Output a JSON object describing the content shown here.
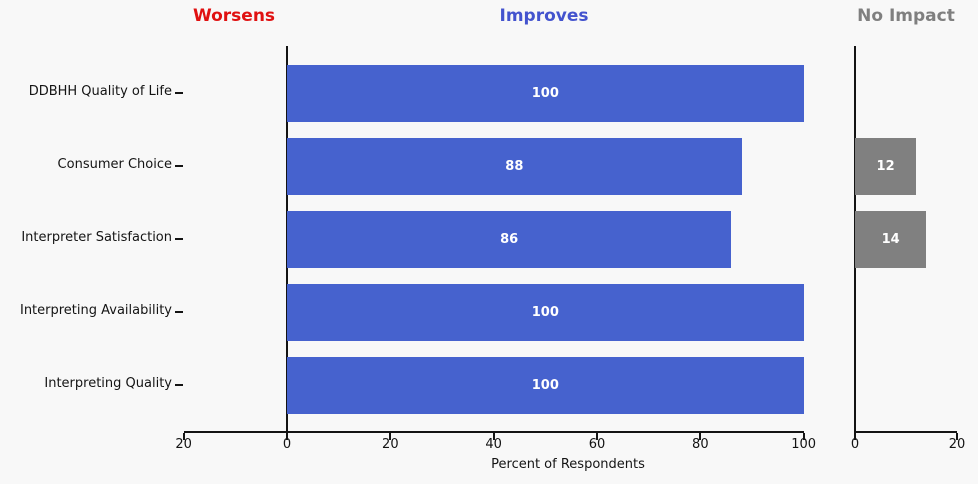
{
  "figure": {
    "background": "#f8f8f8"
  },
  "headers": [
    {
      "label": "Worsens",
      "color": "#e01111"
    },
    {
      "label": "Improves",
      "color": "#4353ce"
    },
    {
      "label": "No Impact",
      "color": "#7f7f7f"
    }
  ],
  "chart_data": {
    "type": "bar",
    "orientation": "horizontal",
    "xlabel": "Percent of Respondents",
    "categories": [
      "DDBHH Quality of Life",
      "Consumer Choice",
      "Interpreter Satisfaction",
      "Interpreting Availability",
      "Interpreting Quality"
    ],
    "series": [
      {
        "name": "Worsens",
        "color": "#e01111",
        "values": [
          0,
          0,
          0,
          0,
          0
        ]
      },
      {
        "name": "Improves",
        "color": "#4662ce",
        "values": [
          100,
          88,
          86,
          100,
          100
        ]
      },
      {
        "name": "No Impact",
        "color": "#808080",
        "values": [
          0,
          12,
          14,
          0,
          0
        ]
      }
    ],
    "value_label_color": "#ffffff",
    "main_axis": {
      "range": [
        -20,
        100
      ],
      "ticks": [
        -20,
        0,
        20,
        40,
        60,
        80,
        100
      ],
      "tick_labels": [
        "20",
        "0",
        "20",
        "40",
        "60",
        "80",
        "100"
      ]
    },
    "no_impact_axis": {
      "range": [
        0,
        20
      ],
      "ticks": [
        0,
        20
      ],
      "tick_labels": [
        "0",
        "20"
      ]
    },
    "grid": false,
    "legend_position": "column-headers"
  }
}
